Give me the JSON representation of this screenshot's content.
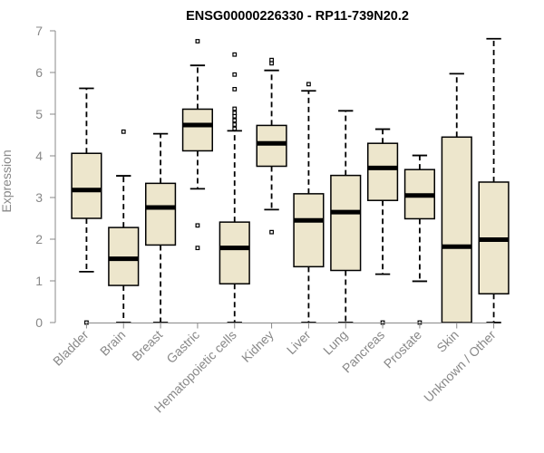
{
  "chart_data": {
    "type": "boxplot",
    "title": "ENSG00000226330 - RP11-739N20.2",
    "xlabel": "",
    "ylabel": "Expression",
    "ylim": [
      0,
      7
    ],
    "yticks": [
      0,
      1,
      2,
      3,
      4,
      5,
      6,
      7
    ],
    "grid": false,
    "colors": {
      "box_fill": "#ede6cc",
      "stroke": "#000000",
      "axis": "#888888"
    },
    "categories": [
      "Bladder",
      "Brain",
      "Breast",
      "Gastric",
      "Hematopoietic cells",
      "Kidney",
      "Liver",
      "Lung",
      "Pancreas",
      "Prostate",
      "Skin",
      "Unknown / Other"
    ],
    "boxes": [
      {
        "category": "Bladder",
        "whisker_low": 1.22,
        "q1": 2.5,
        "median": 3.18,
        "q3": 4.06,
        "whisker_high": 5.62,
        "outliers": [
          0.0
        ]
      },
      {
        "category": "Brain",
        "whisker_low": 0.0,
        "q1": 0.89,
        "median": 1.53,
        "q3": 2.28,
        "whisker_high": 3.52,
        "outliers": [
          4.58
        ]
      },
      {
        "category": "Breast",
        "whisker_low": 0.0,
        "q1": 1.86,
        "median": 2.76,
        "q3": 3.34,
        "whisker_high": 4.53,
        "outliers": []
      },
      {
        "category": "Gastric",
        "whisker_low": 3.21,
        "q1": 4.12,
        "median": 4.74,
        "q3": 5.12,
        "whisker_high": 6.17,
        "outliers": [
          6.75,
          2.33,
          1.79
        ]
      },
      {
        "category": "Hematopoietic cells",
        "whisker_low": 0.0,
        "q1": 0.93,
        "median": 1.79,
        "q3": 2.41,
        "whisker_high": 4.6,
        "outliers": [
          6.43,
          5.95,
          5.6,
          5.13,
          5.03,
          4.95,
          4.85,
          4.75,
          4.65
        ]
      },
      {
        "category": "Kidney",
        "whisker_low": 2.71,
        "q1": 3.75,
        "median": 4.3,
        "q3": 4.73,
        "whisker_high": 6.05,
        "outliers": [
          6.3,
          6.22,
          2.17
        ]
      },
      {
        "category": "Liver",
        "whisker_low": 0.0,
        "q1": 1.34,
        "median": 2.45,
        "q3": 3.09,
        "whisker_high": 5.56,
        "outliers": [
          5.72
        ]
      },
      {
        "category": "Lung",
        "whisker_low": 0.0,
        "q1": 1.25,
        "median": 2.65,
        "q3": 3.53,
        "whisker_high": 5.08,
        "outliers": []
      },
      {
        "category": "Pancreas",
        "whisker_low": 1.16,
        "q1": 2.93,
        "median": 3.71,
        "q3": 4.3,
        "whisker_high": 4.64,
        "outliers": [
          0.0
        ]
      },
      {
        "category": "Prostate",
        "whisker_low": 0.99,
        "q1": 2.49,
        "median": 3.05,
        "q3": 3.67,
        "whisker_high": 4.01,
        "outliers": [
          0.0
        ]
      },
      {
        "category": "Skin",
        "whisker_low": 0.0,
        "q1": 0.0,
        "median": 1.82,
        "q3": 4.45,
        "whisker_high": 5.97,
        "outliers": []
      },
      {
        "category": "Unknown / Other",
        "whisker_low": 0.0,
        "q1": 0.69,
        "median": 1.99,
        "q3": 3.37,
        "whisker_high": 6.81,
        "outliers": []
      }
    ]
  }
}
